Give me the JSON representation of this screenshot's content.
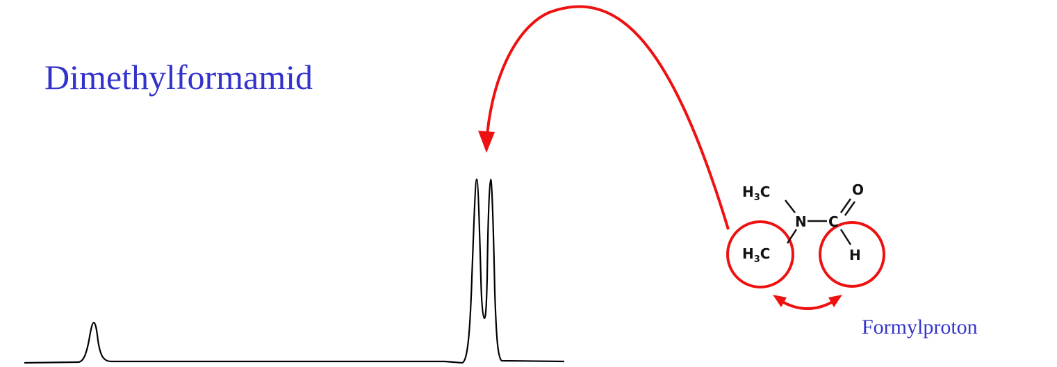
{
  "title": "Dimethylformamid",
  "label_formylproton": "Formylproton",
  "molecule": {
    "methyl_top": {
      "main": "H",
      "sub": "3",
      "tail": "C"
    },
    "methyl_bottom": {
      "main": "H",
      "sub": "3",
      "tail": "C"
    },
    "nitrogen": "N",
    "carbonyl_carbon": "C",
    "oxygen": "O",
    "formyl_hydrogen": "H"
  },
  "colors": {
    "title": "#3333cc",
    "annotation": "#ee1111",
    "spectrum": "#000000"
  },
  "icons": {
    "long_arrow": "curved-arrow",
    "exchange_arrow": "double-headed-curved-arrow"
  }
}
